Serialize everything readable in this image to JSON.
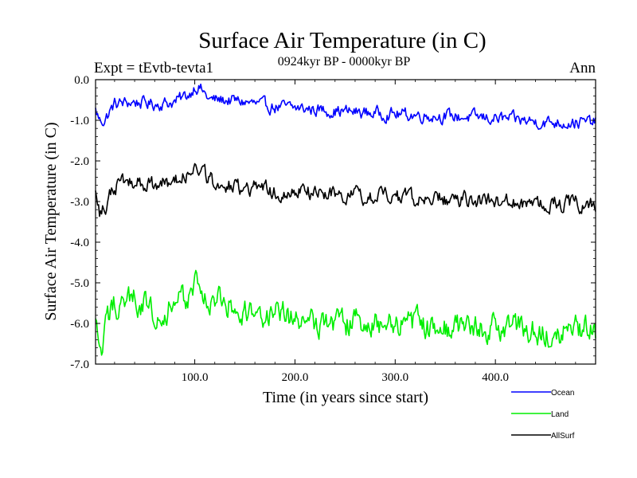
{
  "chart_data": {
    "type": "line",
    "title": "Surface Air Temperature (in C)",
    "subtitle": "0924kyr BP - 0000kyr BP",
    "experiment_label": "Expt = tEvtb-tevta1",
    "period_label": "Ann",
    "xlabel": "Time (in years since start)",
    "ylabel": "Surface Air Temperature (in C)",
    "xlim": [
      1,
      500
    ],
    "ylim": [
      -7.0,
      0.0
    ],
    "x_ticks": [
      100,
      200,
      300,
      400
    ],
    "x_tick_labels": [
      "100.0",
      "200.0",
      "300.0",
      "400.0"
    ],
    "y_ticks": [
      0,
      -1,
      -2,
      -3,
      -4,
      -5,
      -6,
      -7
    ],
    "y_tick_labels": [
      "0.0",
      "-1.0",
      "-2.0",
      "-3.0",
      "-4.0",
      "-5.0",
      "-6.0",
      "-7.0"
    ],
    "grid": false,
    "legend_position": "bottom-right",
    "series": [
      {
        "name": "Ocean",
        "color": "#0000ff",
        "trend_x": [
          1,
          5,
          10,
          20,
          40,
          60,
          80,
          95,
          100,
          105,
          115,
          130,
          150,
          170,
          200,
          230,
          260,
          300,
          350,
          400,
          450,
          500
        ],
        "trend_y": [
          -0.75,
          -1.0,
          -1.0,
          -0.6,
          -0.55,
          -0.6,
          -0.55,
          -0.35,
          -0.15,
          -0.2,
          -0.5,
          -0.5,
          -0.55,
          -0.65,
          -0.7,
          -0.75,
          -0.8,
          -0.85,
          -0.9,
          -0.95,
          -1.05,
          -1.05
        ],
        "noise": 0.13
      },
      {
        "name": "Land",
        "color": "#00ee00",
        "trend_x": [
          1,
          4,
          8,
          12,
          20,
          40,
          60,
          80,
          95,
          100,
          105,
          115,
          130,
          150,
          170,
          200,
          230,
          260,
          300,
          350,
          400,
          450,
          500
        ],
        "trend_y": [
          -6.0,
          -6.6,
          -6.7,
          -6.0,
          -5.5,
          -5.4,
          -5.7,
          -5.6,
          -5.3,
          -5.0,
          -5.1,
          -5.5,
          -5.5,
          -5.7,
          -5.8,
          -5.9,
          -5.95,
          -6.0,
          -6.0,
          -6.1,
          -6.1,
          -6.15,
          -6.2
        ],
        "noise": 0.28
      },
      {
        "name": "AllSurf",
        "color": "#000000",
        "trend_x": [
          1,
          5,
          10,
          20,
          40,
          60,
          80,
          95,
          100,
          105,
          115,
          130,
          150,
          170,
          200,
          230,
          260,
          300,
          350,
          400,
          450,
          500
        ],
        "trend_y": [
          -2.8,
          -3.3,
          -3.2,
          -2.6,
          -2.5,
          -2.6,
          -2.5,
          -2.3,
          -2.1,
          -2.2,
          -2.5,
          -2.6,
          -2.65,
          -2.7,
          -2.75,
          -2.8,
          -2.85,
          -2.9,
          -2.95,
          -3.0,
          -3.05,
          -3.05
        ],
        "noise": 0.16
      }
    ]
  }
}
